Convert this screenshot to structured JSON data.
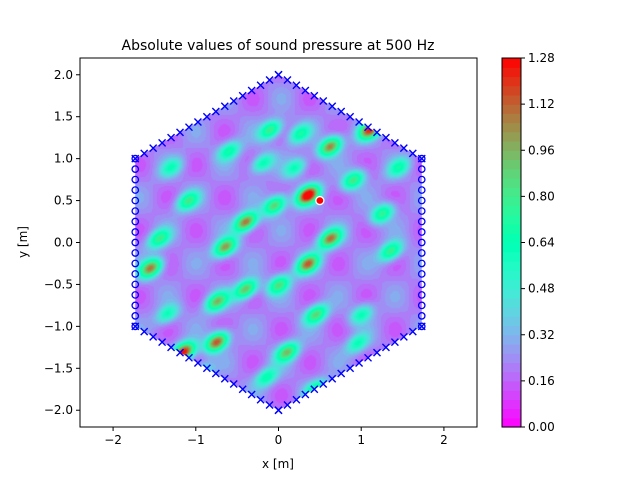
{
  "chart_data": {
    "type": "heatmap",
    "title": "Absolute values of sound pressure at 500 Hz",
    "xlabel": "x [m]",
    "ylabel": "y [m]",
    "xlim": [
      -2.4,
      2.4
    ],
    "ylim": [
      -2.2,
      2.2
    ],
    "x_ticks": [
      -2,
      -1,
      0,
      1,
      2
    ],
    "x_tick_labels": [
      "−2",
      "−1",
      "0",
      "1",
      "2"
    ],
    "y_ticks": [
      2.0,
      1.5,
      1.0,
      0.5,
      0.0,
      -0.5,
      -1.0,
      -1.5,
      -2.0
    ],
    "y_tick_labels": [
      "2.0",
      "1.5",
      "1.0",
      "0.5",
      "0.0",
      "−0.5",
      "−1.0",
      "−1.5",
      "−2.0"
    ],
    "colorbar": {
      "min": 0.0,
      "max": 1.28,
      "ticks": [
        0.0,
        0.16,
        0.32,
        0.48,
        0.64,
        0.8,
        0.96,
        1.12,
        1.28
      ],
      "tick_labels": [
        "0.00",
        "0.16",
        "0.32",
        "0.48",
        "0.64",
        "0.80",
        "0.96",
        "1.12",
        "1.28"
      ],
      "colormap": "rainbow",
      "levels": 40
    },
    "domain": {
      "shape": "hexagon",
      "vertices": [
        [
          0,
          2
        ],
        [
          1.732,
          1
        ],
        [
          1.732,
          -1
        ],
        [
          0,
          -2
        ],
        [
          -1.732,
          -1
        ],
        [
          -1.732,
          1
        ]
      ]
    },
    "source": {
      "x": 0.5,
      "y": 0.5,
      "color": "#ff0000"
    },
    "boundary_markers": {
      "color": "#0000ff",
      "vertical_edges": "o",
      "slanted_edges": "x"
    },
    "hotspots": [
      {
        "x": 0.35,
        "y": 0.57,
        "value": 1.28
      },
      {
        "x": -1.15,
        "y": -1.3,
        "value": 1.2
      },
      {
        "x": 1.1,
        "y": 1.35,
        "value": 1.1
      },
      {
        "x": -0.75,
        "y": -1.18,
        "value": 1.1
      },
      {
        "x": -0.4,
        "y": 0.25,
        "value": 1.05
      },
      {
        "x": 0.35,
        "y": -0.25,
        "value": 1.0
      },
      {
        "x": 0.62,
        "y": 1.15,
        "value": 1.0
      },
      {
        "x": 0.62,
        "y": 0.05,
        "value": 1.0
      },
      {
        "x": -0.65,
        "y": -0.05,
        "value": 0.95
      },
      {
        "x": -0.4,
        "y": -0.55,
        "value": 0.9
      },
      {
        "x": -0.05,
        "y": 0.45,
        "value": 0.85
      },
      {
        "x": 0.0,
        "y": -0.5,
        "value": 0.75
      },
      {
        "x": 0.45,
        "y": -0.85,
        "value": 0.8
      },
      {
        "x": -0.75,
        "y": -0.7,
        "value": 0.85
      },
      {
        "x": 0.9,
        "y": 0.75,
        "value": 0.75
      },
      {
        "x": 1.25,
        "y": 0.35,
        "value": 0.7
      },
      {
        "x": 1.35,
        "y": -0.1,
        "value": 0.75
      },
      {
        "x": -1.1,
        "y": 0.5,
        "value": 0.7
      },
      {
        "x": -1.45,
        "y": 0.05,
        "value": 0.7
      },
      {
        "x": -1.55,
        "y": -0.3,
        "value": 1.0
      },
      {
        "x": -0.1,
        "y": 1.35,
        "value": 0.75
      },
      {
        "x": 0.25,
        "y": 1.3,
        "value": 0.6
      },
      {
        "x": -0.6,
        "y": 1.1,
        "value": 0.6
      },
      {
        "x": 0.1,
        "y": -1.3,
        "value": 0.85
      },
      {
        "x": 0.45,
        "y": -1.75,
        "value": 0.7
      },
      {
        "x": -0.15,
        "y": -1.6,
        "value": 0.6
      },
      {
        "x": 1.0,
        "y": -0.85,
        "value": 0.55
      },
      {
        "x": 0.95,
        "y": -1.2,
        "value": 0.55
      },
      {
        "x": -0.2,
        "y": 0.95,
        "value": 0.6
      },
      {
        "x": 0.2,
        "y": 0.9,
        "value": 0.55
      },
      {
        "x": -1.35,
        "y": -0.85,
        "value": 0.55
      },
      {
        "x": -0.95,
        "y": -1.55,
        "value": 0.55
      },
      {
        "x": 1.45,
        "y": 0.9,
        "value": 0.55
      },
      {
        "x": -1.3,
        "y": 0.9,
        "value": 0.5
      }
    ]
  }
}
